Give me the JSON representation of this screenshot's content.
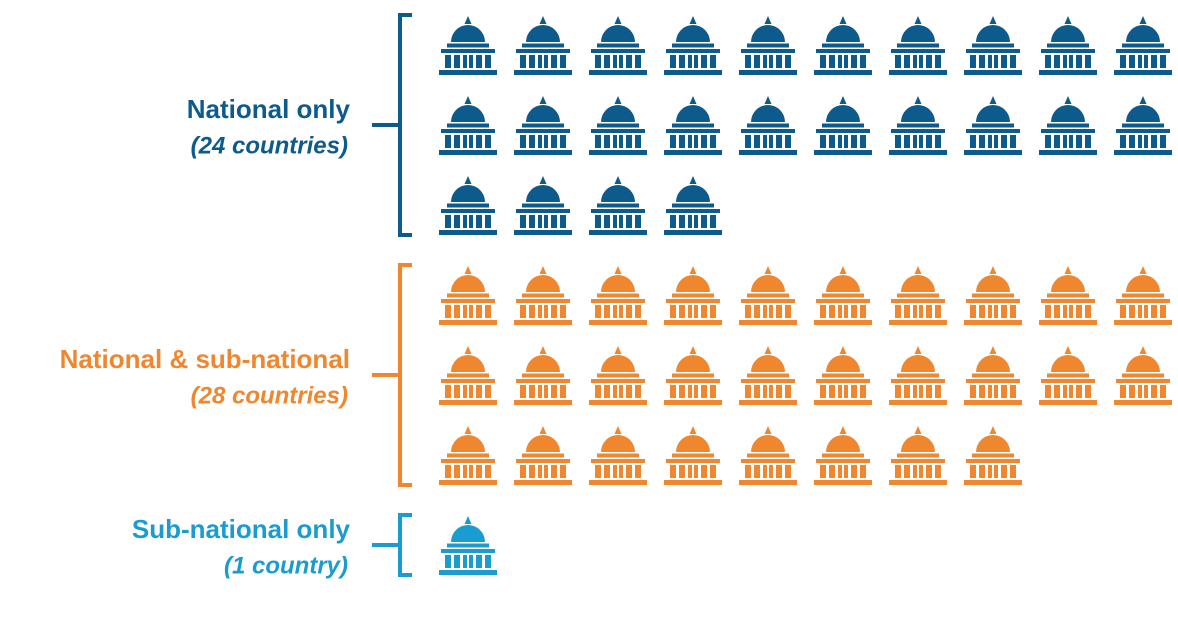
{
  "chart_data": {
    "type": "pictogram",
    "categories": [
      "National only",
      "National & sub-national",
      "Sub-national only"
    ],
    "values": [
      24,
      28,
      1
    ],
    "value_labels": [
      "(24 countries)",
      "(28 countries)",
      "(1 country)"
    ],
    "colors": [
      "#0d5a8c",
      "#f0862e",
      "#1a9cd0"
    ]
  }
}
